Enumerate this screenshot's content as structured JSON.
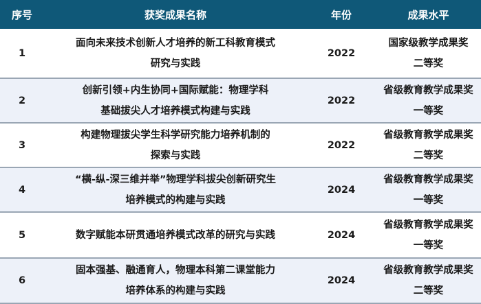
{
  "header": {
    "index": "序号",
    "name": "获奖成果名称",
    "year": "年份",
    "level": "成果水平"
  },
  "rows": [
    {
      "index": "1",
      "name": [
        "面向未来技术创新人才培养的新工科教育模式",
        "研究与实践"
      ],
      "year": "2022",
      "level": [
        "国家级教学成果奖",
        "二等奖"
      ]
    },
    {
      "index": "2",
      "name": [
        "创新引领+内生协同+国际赋能：物理学科",
        "基础拔尖人才培养模式构建与实践"
      ],
      "year": "2022",
      "level": [
        "省级教育教学成果奖",
        "一等奖"
      ]
    },
    {
      "index": "3",
      "name": [
        "构建物理拔尖学生科学研究能力培养机制的",
        "探索与实践"
      ],
      "year": "2022",
      "level": [
        "省级教育教学成果奖",
        "二等奖"
      ]
    },
    {
      "index": "4",
      "name": [
        "“横-纵-深三维并举”物理学科拔尖创新研究生",
        "培养模式的构建与实践"
      ],
      "year": "2024",
      "level": [
        "省级教育教学成果奖",
        "一等奖"
      ]
    },
    {
      "index": "5",
      "name": [
        "数字赋能本研贯通培养模式改革的研究与实践"
      ],
      "year": "2024",
      "level": [
        "省级教育教学成果奖",
        "一等奖"
      ]
    },
    {
      "index": "6",
      "name": [
        "固本强基、融通育人，物理本科第二课堂能力",
        "培养体系的构建与实践"
      ],
      "year": "2024",
      "level": [
        "省级教育教学成果奖",
        "二等奖"
      ]
    }
  ],
  "colors": {
    "header_bg": "#0f5878",
    "alt_row_bg": "#edf1f9",
    "divider": "#9aa6b4"
  }
}
